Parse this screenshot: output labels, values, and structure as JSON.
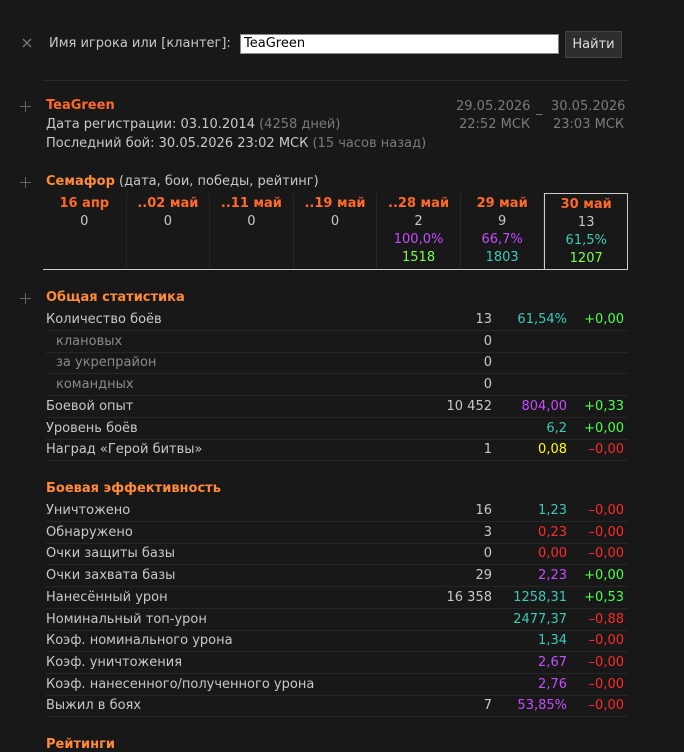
{
  "search": {
    "label": "Имя игрока или [клантег]:",
    "input": "TeaGreen",
    "button": "Найти"
  },
  "player": {
    "name": "TeaGreen",
    "reg_label": "Дата регистрации:",
    "reg_date": "03.10.2014",
    "reg_days": "(4258 дней)",
    "last_label": "Последний бой:",
    "last_date": "30.05.2026 23:02 МСК",
    "last_ago": "(15 часов назад)",
    "period": {
      "from_date": "29.05.2026",
      "from_time": "22:52 МСК",
      "sep": "_",
      "to_date": "30.05.2026",
      "to_time": "23:03 МСК"
    }
  },
  "semaphore": {
    "title": "Семафор",
    "subtitle": "(дата, бои, победы, рейтинг)",
    "highlight_index": 6,
    "columns": [
      {
        "date": "16 апр",
        "battles": "0",
        "winrate": null,
        "winrate_color": null,
        "rating": null,
        "rating_color": null
      },
      {
        "date": "..02 май",
        "battles": "0",
        "winrate": null,
        "winrate_color": null,
        "rating": null,
        "rating_color": null
      },
      {
        "date": "..11 май",
        "battles": "0",
        "winrate": null,
        "winrate_color": null,
        "rating": null,
        "rating_color": null
      },
      {
        "date": "..19 май",
        "battles": "0",
        "winrate": null,
        "winrate_color": null,
        "rating": null,
        "rating_color": null
      },
      {
        "date": "..28 май",
        "battles": "2",
        "winrate": "100,0%",
        "winrate_color": "#c64cff",
        "rating": "1518",
        "rating_color": "#7cff4c"
      },
      {
        "date": "29 май",
        "battles": "9",
        "winrate": "66,7%",
        "winrate_color": "#c64cff",
        "rating": "1803",
        "rating_color": "#3ec9b6"
      },
      {
        "date": "30 май",
        "battles": "13",
        "winrate": "61,5%",
        "winrate_color": "#3ec9b6",
        "rating": "1207",
        "rating_color": "#7cff4c"
      }
    ]
  },
  "general": {
    "title": "Общая статистика",
    "rows": [
      {
        "label": "Количество боёв",
        "sub": false,
        "value": "13",
        "rate": "61,54%",
        "rate_color": "#3ec9b6",
        "delta": "+0,00",
        "delta_color": "#4cff4c"
      },
      {
        "label": "клановых",
        "sub": true,
        "value": "0",
        "rate": null,
        "rate_color": null,
        "delta": null,
        "delta_color": null
      },
      {
        "label": "за укрепрайон",
        "sub": true,
        "value": "0",
        "rate": null,
        "rate_color": null,
        "delta": null,
        "delta_color": null
      },
      {
        "label": "командных",
        "sub": true,
        "value": "0",
        "rate": null,
        "rate_color": null,
        "delta": null,
        "delta_color": null
      },
      {
        "label": "Боевой опыт",
        "sub": false,
        "value": "10 452",
        "rate": "804,00",
        "rate_color": "#c64cff",
        "delta": "+0,33",
        "delta_color": "#4cff4c"
      },
      {
        "label": "Уровень боёв",
        "sub": false,
        "value": null,
        "rate": "6,2",
        "rate_color": "#3ec9b6",
        "delta": "+0,00",
        "delta_color": "#4cff4c"
      },
      {
        "label": "Наград «Герой битвы»",
        "sub": false,
        "value": "1",
        "rate": "0,08",
        "rate_color": "#ffff00",
        "delta": "–0,00",
        "delta_color": "#ff2a2a"
      }
    ]
  },
  "efficiency": {
    "title": "Боевая эффективность",
    "rows": [
      {
        "label": "Уничтожено",
        "sub": false,
        "value": "16",
        "rate": "1,23",
        "rate_color": "#3ec9b6",
        "delta": "–0,00",
        "delta_color": "#ff2a2a"
      },
      {
        "label": "Обнаружено",
        "sub": false,
        "value": "3",
        "rate": "0,23",
        "rate_color": "#ff2a2a",
        "delta": "–0,00",
        "delta_color": "#ff2a2a"
      },
      {
        "label": "Очки защиты базы",
        "sub": false,
        "value": "0",
        "rate": "0,00",
        "rate_color": "#ff2a2a",
        "delta": "–0,00",
        "delta_color": "#ff2a2a"
      },
      {
        "label": "Очки захвата базы",
        "sub": false,
        "value": "29",
        "rate": "2,23",
        "rate_color": "#c64cff",
        "delta": "+0,00",
        "delta_color": "#4cff4c"
      },
      {
        "label": "Нанесённый урон",
        "sub": false,
        "value": "16 358",
        "rate": "1258,31",
        "rate_color": "#3ec9b6",
        "delta": "+0,53",
        "delta_color": "#4cff4c"
      },
      {
        "label": "Номинальный топ-урон",
        "sub": false,
        "value": null,
        "rate": "2477,37",
        "rate_color": "#3ec9b6",
        "delta": "–0,88",
        "delta_color": "#ff2a2a"
      },
      {
        "label": "Коэф. номинального урона",
        "sub": false,
        "value": null,
        "rate": "1,34",
        "rate_color": "#3ec9b6",
        "delta": "–0,00",
        "delta_color": "#ff2a2a"
      },
      {
        "label": "Коэф. уничтожения",
        "sub": false,
        "value": null,
        "rate": "2,67",
        "rate_color": "#c64cff",
        "delta": "–0,00",
        "delta_color": "#ff2a2a"
      },
      {
        "label": "Коэф. нанесенного/полученного урона",
        "sub": false,
        "value": null,
        "rate": "2,76",
        "rate_color": "#c64cff",
        "delta": "–0,00",
        "delta_color": "#ff2a2a"
      },
      {
        "label": "Выжил в боях",
        "sub": false,
        "value": "7",
        "rate": "53,85%",
        "rate_color": "#c64cff",
        "delta": "–0,00",
        "delta_color": "#ff2a2a"
      }
    ]
  },
  "ratings": {
    "title": "Рейтинги"
  }
}
